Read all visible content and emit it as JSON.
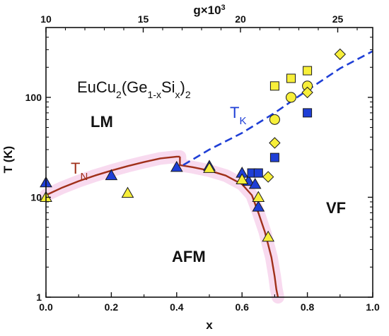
{
  "chart_data": {
    "type": "scatter",
    "title": "EuCu2(Ge1-xSix)2",
    "title_parts": {
      "base": "EuCu",
      "s1": "2",
      "mid": "(Ge",
      "s2": "1-x",
      "si": "Si",
      "s3": "x",
      "close": ")",
      "s4": "2"
    },
    "xlabel": "x",
    "ylabel": "T (K)",
    "top_axis": {
      "label_base": "g×10",
      "label_exp": "3",
      "ticks": [
        "10",
        "15",
        "20",
        "25"
      ],
      "tick_values": [
        10,
        15,
        20,
        25
      ],
      "range": [
        10,
        26.8
      ]
    },
    "xlim": [
      0.0,
      1.0
    ],
    "ylim": [
      1,
      500
    ],
    "yscale": "log",
    "x_ticks": [
      "0.0",
      "0.2",
      "0.4",
      "0.6",
      "0.8",
      "1.0"
    ],
    "x_tick_values": [
      0.0,
      0.2,
      0.4,
      0.6,
      0.8,
      1.0
    ],
    "y_ticks": [
      "1",
      "10",
      "100"
    ],
    "y_tick_values": [
      1,
      10,
      100
    ],
    "regions": {
      "lm": "LM",
      "afm": "AFM",
      "vf": "VF"
    },
    "curve_labels": {
      "tn_base": "T",
      "tn_sub": "N",
      "tk_base": "T",
      "tk_sub": "K"
    },
    "colors": {
      "tn": "#a0301a",
      "tk": "#1f3fd6",
      "blue": "#1f3fd6",
      "yellow": "#f7ef3a",
      "band": "#f7d3ec"
    },
    "lines": [
      {
        "name": "T_N",
        "style": "solid",
        "x": [
          0.0,
          0.05,
          0.1,
          0.15,
          0.2,
          0.25,
          0.3,
          0.35,
          0.4,
          0.41
        ],
        "y": [
          10.5,
          12.5,
          14.5,
          16.5,
          18.5,
          20.5,
          22.5,
          24.5,
          25.5,
          25.5
        ]
      },
      {
        "name": "T_N lower",
        "style": "solid",
        "x": [
          0.41,
          0.41,
          0.45,
          0.5,
          0.55,
          0.6,
          0.63,
          0.65,
          0.67,
          0.69,
          0.7,
          0.705,
          0.71
        ],
        "y": [
          25.5,
          21,
          20,
          18.5,
          16.5,
          13.5,
          10.5,
          7,
          4.5,
          2.5,
          1.6,
          1.2,
          1.0
        ]
      },
      {
        "name": "T_K",
        "style": "dashed",
        "x": [
          0.42,
          0.5,
          0.6,
          0.7,
          0.8,
          0.9,
          1.0
        ],
        "y": [
          21,
          30,
          44,
          70,
          118,
          195,
          290
        ]
      }
    ],
    "series": [
      {
        "name": "blue triangle",
        "marker": "triangle",
        "color": "blue",
        "x": [
          0.0,
          0.2,
          0.4,
          0.5,
          0.6,
          0.62,
          0.64,
          0.65
        ],
        "y": [
          14,
          16.5,
          20,
          20.5,
          17.5,
          14.5,
          13.5,
          8
        ]
      },
      {
        "name": "yellow triangle",
        "marker": "triangle",
        "color": "yellow",
        "x": [
          0.0,
          0.25,
          0.5,
          0.6,
          0.65,
          0.68
        ],
        "y": [
          10,
          11,
          19.5,
          15,
          10,
          4
        ]
      },
      {
        "name": "blue square",
        "marker": "square",
        "color": "blue",
        "x": [
          0.63,
          0.65,
          0.7,
          0.8
        ],
        "y": [
          17.5,
          17.5,
          25,
          70
        ]
      },
      {
        "name": "yellow square",
        "marker": "square",
        "color": "yellow",
        "x": [
          0.7,
          0.75,
          0.8
        ],
        "y": [
          130,
          155,
          185
        ]
      },
      {
        "name": "yellow circle",
        "marker": "circle",
        "color": "yellow",
        "x": [
          0.7,
          0.75,
          0.8
        ],
        "y": [
          60,
          100,
          130
        ]
      },
      {
        "name": "yellow diamond",
        "marker": "diamond",
        "color": "yellow",
        "x": [
          0.68,
          0.7,
          0.8,
          0.9
        ],
        "y": [
          16,
          35,
          112,
          270
        ]
      }
    ],
    "grid": false,
    "legend": "none"
  }
}
